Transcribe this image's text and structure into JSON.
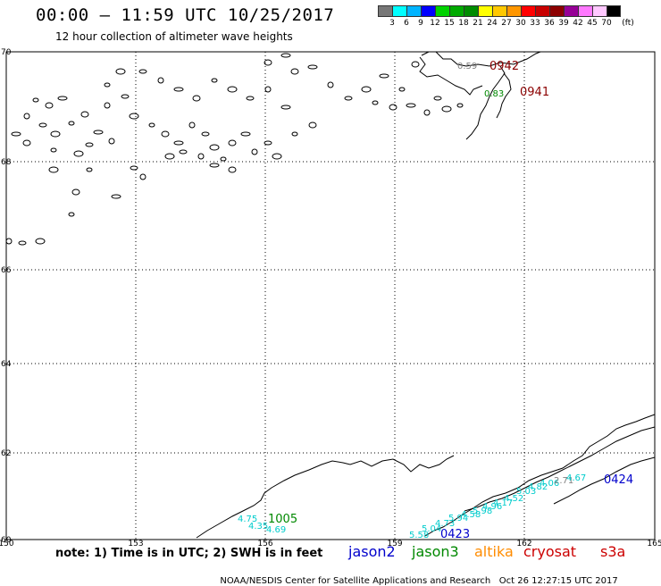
{
  "title": "00:00 – 11:59 UTC 10/25/2017",
  "subtitle": "12 hour collection of altimeter wave heights",
  "colorbar": {
    "colors": [
      "#777777",
      "#00ffff",
      "#00b4ff",
      "#0000ff",
      "#00d200",
      "#00aa00",
      "#008c00",
      "#ffff00",
      "#ffc800",
      "#ff9600",
      "#ff0000",
      "#c80000",
      "#8c0000",
      "#960096",
      "#ff78ff",
      "#ffc8ff",
      "#000000"
    ],
    "labels": [
      "3",
      "6",
      "9",
      "12",
      "15",
      "18",
      "21",
      "24",
      "27",
      "30",
      "33",
      "36",
      "39",
      "42",
      "45",
      "70",
      "(ft)"
    ]
  },
  "map": {
    "lat_labels": [
      "70",
      "68",
      "66",
      "64",
      "62",
      "60"
    ],
    "lon_labels": [
      "150",
      "153",
      "156",
      "159",
      "162",
      "165"
    ],
    "pass_labels": [
      {
        "text": "0942",
        "color": "#8b0000"
      },
      {
        "text": "0941",
        "color": "#8b0000"
      },
      {
        "text": "1005",
        "color": "#008800"
      },
      {
        "text": "0423",
        "color": "#0000cc"
      },
      {
        "text": "0424",
        "color": "#0000cc"
      }
    ],
    "obs_labels": [
      {
        "text": "0.59",
        "color": "#808080"
      },
      {
        "text": "0.83",
        "color": "#008800"
      },
      {
        "text": "4.75",
        "color": "#00cccc"
      },
      {
        "text": "4.35",
        "color": "#00cccc"
      },
      {
        "text": "4.69",
        "color": "#00cccc"
      },
      {
        "text": "5.58",
        "color": "#00cccc"
      },
      {
        "text": "5.04",
        "color": "#00cccc"
      },
      {
        "text": "4.73",
        "color": "#00cccc"
      },
      {
        "text": "5.94",
        "color": "#00cccc"
      },
      {
        "text": "4.58",
        "color": "#00cccc"
      },
      {
        "text": "5.98",
        "color": "#00cccc"
      },
      {
        "text": "4.96",
        "color": "#00cccc"
      },
      {
        "text": "4.17",
        "color": "#00cccc"
      },
      {
        "text": "4.52",
        "color": "#00cccc"
      },
      {
        "text": "5.03",
        "color": "#00cccc"
      },
      {
        "text": "4.82",
        "color": "#00cccc"
      },
      {
        "text": "4.06",
        "color": "#00cccc"
      },
      {
        "text": "2.71",
        "color": "#808080"
      },
      {
        "text": "4.67",
        "color": "#00cccc"
      }
    ]
  },
  "note": "note: 1) Time is in UTC; 2) SWH is in feet",
  "legend": [
    {
      "text": "jason2",
      "color": "#0000cc"
    },
    {
      "text": "jason3",
      "color": "#008800"
    },
    {
      "text": "altika",
      "color": "#ff8c00"
    },
    {
      "text": "cryosat",
      "color": "#cc0000"
    },
    {
      "text": "s3a",
      "color": "#cc0000"
    }
  ],
  "credit_left": "NOAA/NESDIS Center for Satellite Applications and Research",
  "credit_right": "Oct 26 12:27:15 UTC 2017"
}
